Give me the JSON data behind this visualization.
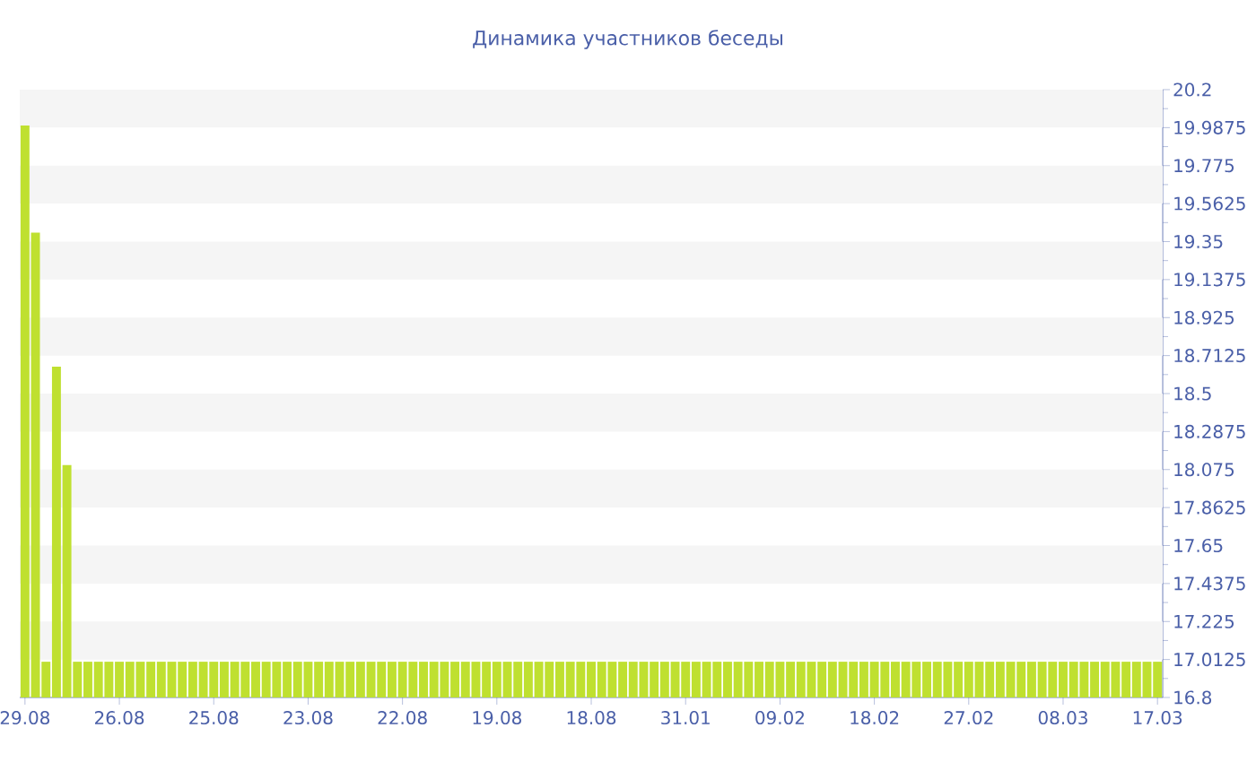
{
  "chart_data": {
    "type": "bar",
    "title": "Динамика участников беседы",
    "categories": [
      "29.08",
      null,
      null,
      null,
      null,
      null,
      null,
      null,
      null,
      "26.08",
      null,
      null,
      null,
      null,
      null,
      null,
      null,
      null,
      "25.08",
      null,
      null,
      null,
      null,
      null,
      null,
      null,
      null,
      "23.08",
      null,
      null,
      null,
      null,
      null,
      null,
      null,
      null,
      "22.08",
      null,
      null,
      null,
      null,
      null,
      null,
      null,
      null,
      "19.08",
      null,
      null,
      null,
      null,
      null,
      null,
      null,
      null,
      "18.08",
      null,
      null,
      null,
      null,
      null,
      null,
      null,
      null,
      "31.01",
      null,
      null,
      null,
      null,
      null,
      null,
      null,
      null,
      "09.02",
      null,
      null,
      null,
      null,
      null,
      null,
      null,
      null,
      "18.02",
      null,
      null,
      null,
      null,
      null,
      null,
      null,
      null,
      "27.02",
      null,
      null,
      null,
      null,
      null,
      null,
      null,
      null,
      "08.03",
      null,
      null,
      null,
      null,
      null,
      null,
      null,
      null,
      "17.03"
    ],
    "values": [
      20,
      19.4,
      17,
      18.65,
      18.1,
      17,
      17,
      17,
      17,
      17,
      17,
      17,
      17,
      17,
      17,
      17,
      17,
      17,
      17,
      17,
      17,
      17,
      17,
      17,
      17,
      17,
      17,
      17,
      17,
      17,
      17,
      17,
      17,
      17,
      17,
      17,
      17,
      17,
      17,
      17,
      17,
      17,
      17,
      17,
      17,
      17,
      17,
      17,
      17,
      17,
      17,
      17,
      17,
      17,
      17,
      17,
      17,
      17,
      17,
      17,
      17,
      17,
      17,
      17,
      17,
      17,
      17,
      17,
      17,
      17,
      17,
      17,
      17,
      17,
      17,
      17,
      17,
      17,
      17,
      17,
      17,
      17,
      17,
      17,
      17,
      17,
      17,
      17,
      17,
      17,
      17,
      17,
      17,
      17,
      17,
      17,
      17,
      17,
      17,
      17,
      17,
      17,
      17,
      17,
      17,
      17,
      17,
      17,
      17
    ],
    "color": "#bfe030",
    "ylim": [
      16.8,
      20.2
    ],
    "yticks": [
      16.8,
      17.0125,
      17.225,
      17.4375,
      17.65,
      17.8625,
      18.075,
      18.2875,
      18.5,
      18.7125,
      18.925,
      19.1375,
      19.35,
      19.5625,
      19.775,
      19.9875,
      20.2
    ],
    "bands": [
      {
        "axis": "y",
        "from": 17.0125,
        "to": 17.225,
        "color": "#f5f5f5"
      },
      {
        "axis": "y",
        "from": 17.4375,
        "to": 17.65,
        "color": "#f5f5f5"
      },
      {
        "axis": "y",
        "from": 17.8625,
        "to": 18.075,
        "color": "#f5f5f5"
      },
      {
        "axis": "y",
        "from": 18.2875,
        "to": 18.5,
        "color": "#f5f5f5"
      },
      {
        "axis": "y",
        "from": 18.7125,
        "to": 18.925,
        "color": "#f5f5f5"
      },
      {
        "axis": "y",
        "from": 19.1375,
        "to": 19.35,
        "color": "#f5f5f5"
      },
      {
        "axis": "y",
        "from": 19.5625,
        "to": 19.775,
        "color": "#f5f5f5"
      },
      {
        "axis": "y",
        "from": 19.9875,
        "to": 20.2,
        "color": "#f5f5f5"
      }
    ]
  }
}
